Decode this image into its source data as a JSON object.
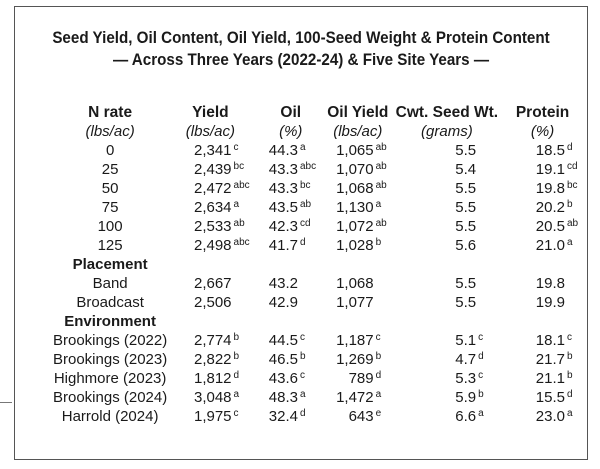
{
  "title_line1": "Seed Yield, Oil Content, Oil Yield, 100-Seed Weight & Protein Content",
  "title_line2": "— Across Three Years (2022-24) & Five Site Years —",
  "columns": [
    "N rate",
    "Yield",
    "Oil",
    "Oil Yield",
    "Cwt. Seed Wt.",
    "Protein"
  ],
  "units": [
    "(lbs/ac)",
    "(lbs/ac)",
    "(%)",
    "(lbs/ac)",
    "(grams)",
    "(%)"
  ],
  "n_rate_rows": [
    {
      "label": "0",
      "yield": "2,341",
      "yield_sup": "c",
      "oil": "44.3",
      "oil_sup": "a",
      "oil_yield": "1,065",
      "oil_yield_sup": "ab",
      "seed_wt": "5.5",
      "seed_wt_sup": "",
      "protein": "18.5",
      "protein_sup": "d"
    },
    {
      "label": "25",
      "yield": "2,439",
      "yield_sup": "bc",
      "oil": "43.3",
      "oil_sup": "abc",
      "oil_yield": "1,070",
      "oil_yield_sup": "ab",
      "seed_wt": "5.4",
      "seed_wt_sup": "",
      "protein": "19.1",
      "protein_sup": "cd"
    },
    {
      "label": "50",
      "yield": "2,472",
      "yield_sup": "abc",
      "oil": "43.3",
      "oil_sup": "bc",
      "oil_yield": "1,068",
      "oil_yield_sup": "ab",
      "seed_wt": "5.5",
      "seed_wt_sup": "",
      "protein": "19.8",
      "protein_sup": "bc"
    },
    {
      "label": "75",
      "yield": "2,634",
      "yield_sup": "a",
      "oil": "43.5",
      "oil_sup": "ab",
      "oil_yield": "1,130",
      "oil_yield_sup": "a",
      "seed_wt": "5.5",
      "seed_wt_sup": "",
      "protein": "20.2",
      "protein_sup": "b"
    },
    {
      "label": "100",
      "yield": "2,533",
      "yield_sup": "ab",
      "oil": "42.3",
      "oil_sup": "cd",
      "oil_yield": "1,072",
      "oil_yield_sup": "ab",
      "seed_wt": "5.5",
      "seed_wt_sup": "",
      "protein": "20.5",
      "protein_sup": "ab"
    },
    {
      "label": "125",
      "yield": "2,498",
      "yield_sup": "abc",
      "oil": "41.7",
      "oil_sup": "d",
      "oil_yield": "1,028",
      "oil_yield_sup": "b",
      "seed_wt": "5.6",
      "seed_wt_sup": "",
      "protein": "21.0",
      "protein_sup": "a"
    }
  ],
  "placement_heading": "Placement",
  "placement_rows": [
    {
      "label": "Band",
      "yield": "2,667",
      "yield_sup": "",
      "oil": "43.2",
      "oil_sup": "",
      "oil_yield": "1,068",
      "oil_yield_sup": "",
      "seed_wt": "5.5",
      "seed_wt_sup": "",
      "protein": "19.8",
      "protein_sup": ""
    },
    {
      "label": "Broadcast",
      "yield": "2,506",
      "yield_sup": "",
      "oil": "42.9",
      "oil_sup": "",
      "oil_yield": "1,077",
      "oil_yield_sup": "",
      "seed_wt": "5.5",
      "seed_wt_sup": "",
      "protein": "19.9",
      "protein_sup": ""
    }
  ],
  "environment_heading": "Environment",
  "environment_rows": [
    {
      "label": "Brookings (2022)",
      "yield": "2,774",
      "yield_sup": "b",
      "oil": "44.5",
      "oil_sup": "c",
      "oil_yield": "1,187",
      "oil_yield_sup": "c",
      "seed_wt": "5.1",
      "seed_wt_sup": "c",
      "protein": "18.1",
      "protein_sup": "c"
    },
    {
      "label": "Brookings (2023)",
      "yield": "2,822",
      "yield_sup": "b",
      "oil": "46.5",
      "oil_sup": "b",
      "oil_yield": "1,269",
      "oil_yield_sup": "b",
      "seed_wt": "4.7",
      "seed_wt_sup": "d",
      "protein": "21.7",
      "protein_sup": "b"
    },
    {
      "label": "Highmore (2023)",
      "yield": "1,812",
      "yield_sup": "d",
      "oil": "43.6",
      "oil_sup": "c",
      "oil_yield": "789",
      "oil_yield_sup": "d",
      "seed_wt": "5.3",
      "seed_wt_sup": "c",
      "protein": "21.1",
      "protein_sup": "b"
    },
    {
      "label": "Brookings (2024)",
      "yield": "3,048",
      "yield_sup": "a",
      "oil": "48.3",
      "oil_sup": "a",
      "oil_yield": "1,472",
      "oil_yield_sup": "a",
      "seed_wt": "5.9",
      "seed_wt_sup": "b",
      "protein": "15.5",
      "protein_sup": "d"
    },
    {
      "label": "Harrold (2024)",
      "yield": "1,975",
      "yield_sup": "c",
      "oil": "32.4",
      "oil_sup": "d",
      "oil_yield": "643",
      "oil_yield_sup": "e",
      "seed_wt": "6.6",
      "seed_wt_sup": "a",
      "protein": "23.0",
      "protein_sup": "a"
    }
  ]
}
